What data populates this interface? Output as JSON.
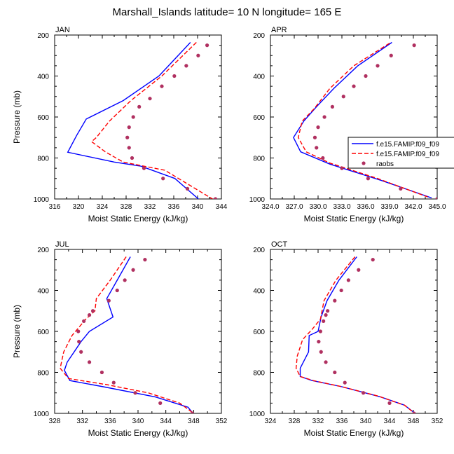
{
  "figure_title": "Marshall_Islands  latitude= 10 N longitude= 165 E",
  "legend": {
    "entries": [
      {
        "label": "f.e15.FAMIP.f09_f09",
        "style": "solid",
        "color": "#0000ff"
      },
      {
        "label": "f.e15.FAMIP.f09_f09",
        "style": "dashed",
        "color": "#ff0000"
      },
      {
        "label": "raobs",
        "style": "dots",
        "color": "#b03060"
      }
    ]
  },
  "colors": {
    "model_solid": "#0000ff",
    "model_dashed": "#ff0000",
    "raobs": "#b03060"
  },
  "chart_data": [
    {
      "type": "line",
      "panel": "JAN",
      "xlabel": "Moist Static Energy (kJ/kg)",
      "ylabel": "Pressure (mb)",
      "xlim": [
        316,
        344
      ],
      "xticks": [
        316,
        320,
        324,
        328,
        332,
        336,
        340,
        344
      ],
      "xtick_labels": [
        "316",
        "320",
        "324",
        "328",
        "332",
        "336",
        "340",
        "344"
      ],
      "ylim": [
        200,
        1000
      ],
      "yticks": [
        200,
        400,
        600,
        800,
        1000
      ],
      "ytick_labels": [
        "200",
        "400",
        "600",
        "800",
        "1000"
      ],
      "series": [
        {
          "name": "f.e15.FAMIP.f09_f09",
          "style": "solid",
          "points": [
            [
              338.8,
              236
            ],
            [
              333.5,
              400
            ],
            [
              327.5,
              520
            ],
            [
              321.3,
              610
            ],
            [
              319.7,
              690
            ],
            [
              318.2,
              772
            ],
            [
              326.0,
              820
            ],
            [
              330.5,
              840
            ],
            [
              336.2,
              900
            ],
            [
              340.3,
              1004
            ]
          ]
        },
        {
          "name": "f.e15.FAMIP.f09_f09",
          "style": "dashed",
          "points": [
            [
              339.8,
              236
            ],
            [
              334.0,
              400
            ],
            [
              328.8,
              520
            ],
            [
              325.2,
              620
            ],
            [
              323.0,
              700
            ],
            [
              322.2,
              720
            ],
            [
              324.5,
              770
            ],
            [
              327.5,
              820
            ],
            [
              334.5,
              860
            ],
            [
              342.5,
              1000
            ]
          ]
        },
        {
          "name": "raobs",
          "style": "dots",
          "points": [
            [
              341.6,
              250
            ],
            [
              340.1,
              300
            ],
            [
              338.1,
              350
            ],
            [
              336.1,
              400
            ],
            [
              334.0,
              450
            ],
            [
              332.0,
              510
            ],
            [
              330.2,
              550
            ],
            [
              329.2,
              600
            ],
            [
              328.5,
              650
            ],
            [
              328.2,
              700
            ],
            [
              328.5,
              750
            ],
            [
              329.0,
              800
            ],
            [
              331.0,
              850
            ],
            [
              334.2,
              900
            ],
            [
              338.3,
              950
            ],
            [
              343.0,
              1000
            ]
          ]
        }
      ]
    },
    {
      "type": "line",
      "panel": "APR",
      "xlabel": "Moist Static Energy (kJ/kg)",
      "ylabel": "",
      "xlim": [
        324,
        345
      ],
      "xticks": [
        324,
        327,
        330,
        333,
        336,
        339,
        342,
        345
      ],
      "xtick_labels": [
        "324.0",
        "327.0",
        "330.0",
        "333.0",
        "336.0",
        "339.0",
        "342.0",
        "345.0"
      ],
      "ylim": [
        200,
        1000
      ],
      "yticks": [
        200,
        400,
        600,
        800,
        1000
      ],
      "ytick_labels": [
        "200",
        "400",
        "600",
        "800",
        "1000"
      ],
      "series": [
        {
          "name": "f.e15.FAMIP.f09_f09",
          "style": "solid",
          "points": [
            [
              339.3,
              236
            ],
            [
              335.0,
              350
            ],
            [
              332.0,
              460
            ],
            [
              329.8,
              550
            ],
            [
              328.2,
              620
            ],
            [
              326.9,
              700
            ],
            [
              327.8,
              770
            ],
            [
              331.5,
              830
            ],
            [
              338.0,
              910
            ],
            [
              344.3,
              995
            ]
          ]
        },
        {
          "name": "f.e15.FAMIP.f09_f09",
          "style": "dashed",
          "points": [
            [
              339.0,
              240
            ],
            [
              334.5,
              350
            ],
            [
              331.5,
              460
            ],
            [
              329.5,
              560
            ],
            [
              328.0,
              620
            ],
            [
              327.5,
              700
            ],
            [
              328.5,
              770
            ],
            [
              331.5,
              825
            ],
            [
              337.5,
              900
            ],
            [
              343.8,
              990
            ]
          ]
        },
        {
          "name": "raobs",
          "style": "dots",
          "points": [
            [
              342.1,
              250
            ],
            [
              339.2,
              300
            ],
            [
              337.5,
              350
            ],
            [
              336.0,
              400
            ],
            [
              334.5,
              450
            ],
            [
              333.2,
              500
            ],
            [
              331.8,
              550
            ],
            [
              330.8,
              600
            ],
            [
              330.0,
              650
            ],
            [
              329.6,
              700
            ],
            [
              329.8,
              750
            ],
            [
              330.6,
              800
            ],
            [
              333.0,
              850
            ],
            [
              336.3,
              900
            ],
            [
              340.4,
              950
            ],
            [
              345.0,
              1000
            ]
          ]
        }
      ]
    },
    {
      "type": "line",
      "panel": "JUL",
      "xlabel": "Moist Static Energy (kJ/kg)",
      "ylabel": "Pressure (mb)",
      "xlim": [
        328,
        352
      ],
      "xticks": [
        328,
        332,
        336,
        340,
        344,
        348,
        352
      ],
      "xtick_labels": [
        "328",
        "332",
        "336",
        "340",
        "344",
        "348",
        "352"
      ],
      "ylim": [
        200,
        1000
      ],
      "yticks": [
        200,
        400,
        600,
        800,
        1000
      ],
      "ytick_labels": [
        "200",
        "400",
        "600",
        "800",
        "1000"
      ],
      "series": [
        {
          "name": "f.e15.FAMIP.f09_f09",
          "style": "solid",
          "points": [
            [
              338.9,
              236
            ],
            [
              337.0,
              350
            ],
            [
              335.5,
              440
            ],
            [
              336.4,
              530
            ],
            [
              333.0,
              600
            ],
            [
              331.8,
              650
            ],
            [
              330.8,
              700
            ],
            [
              329.8,
              750
            ],
            [
              329.4,
              790
            ],
            [
              330.2,
              840
            ],
            [
              335.0,
              870
            ],
            [
              342.5,
              920
            ],
            [
              347.2,
              970
            ],
            [
              348.0,
              1004
            ]
          ]
        },
        {
          "name": "f.e15.FAMIP.f09_f09",
          "style": "dashed",
          "points": [
            [
              338.3,
              236
            ],
            [
              336.0,
              350
            ],
            [
              334.0,
              440
            ],
            [
              333.8,
              500
            ],
            [
              332.5,
              540
            ],
            [
              330.5,
              620
            ],
            [
              329.3,
              700
            ],
            [
              328.8,
              780
            ],
            [
              330.0,
              830
            ],
            [
              335.5,
              860
            ],
            [
              341.5,
              900
            ],
            [
              346.0,
              950
            ],
            [
              347.8,
              995
            ]
          ]
        },
        {
          "name": "raobs",
          "style": "dots",
          "points": [
            [
              341.0,
              250
            ],
            [
              339.3,
              300
            ],
            [
              338.1,
              350
            ],
            [
              337.0,
              400
            ],
            [
              335.8,
              450
            ],
            [
              333.5,
              500
            ],
            [
              333.0,
              520
            ],
            [
              332.2,
              550
            ],
            [
              331.4,
              600
            ],
            [
              331.5,
              650
            ],
            [
              331.8,
              700
            ],
            [
              333.0,
              750
            ],
            [
              334.8,
              800
            ],
            [
              336.5,
              850
            ],
            [
              339.6,
              900
            ],
            [
              343.2,
              950
            ],
            [
              347.8,
              1000
            ]
          ]
        }
      ]
    },
    {
      "type": "line",
      "panel": "OCT",
      "xlabel": "Moist Static Energy (kJ/kg)",
      "ylabel": "",
      "xlim": [
        324,
        352
      ],
      "xticks": [
        324,
        328,
        332,
        336,
        340,
        344,
        348,
        352
      ],
      "xtick_labels": [
        "324",
        "328",
        "332",
        "336",
        "340",
        "344",
        "348",
        "352"
      ],
      "ylim": [
        200,
        1000
      ],
      "yticks": [
        200,
        400,
        600,
        800,
        1000
      ],
      "ytick_labels": [
        "200",
        "400",
        "600",
        "800",
        "1000"
      ],
      "series": [
        {
          "name": "f.e15.FAMIP.f09_f09",
          "style": "solid",
          "points": [
            [
              338.5,
              236
            ],
            [
              335.5,
              350
            ],
            [
              333.5,
              450
            ],
            [
              332.5,
              530
            ],
            [
              332.0,
              600
            ],
            [
              330.5,
              620
            ],
            [
              330.4,
              700
            ],
            [
              329.0,
              780
            ],
            [
              329.0,
              820
            ],
            [
              331.0,
              840
            ],
            [
              336.0,
              870
            ],
            [
              342.5,
              920
            ],
            [
              346.5,
              960
            ],
            [
              348.3,
              1000
            ]
          ]
        },
        {
          "name": "f.e15.FAMIP.f09_f09",
          "style": "dashed",
          "points": [
            [
              338.2,
              236
            ],
            [
              335.0,
              350
            ],
            [
              333.0,
              450
            ],
            [
              332.4,
              540
            ],
            [
              331.0,
              590
            ],
            [
              329.4,
              640
            ],
            [
              328.5,
              720
            ],
            [
              328.3,
              780
            ],
            [
              329.0,
              820
            ],
            [
              331.2,
              840
            ],
            [
              336.0,
              870
            ],
            [
              342.0,
              915
            ],
            [
              346.5,
              960
            ],
            [
              348.0,
              995
            ]
          ]
        },
        {
          "name": "raobs",
          "style": "dots",
          "points": [
            [
              341.2,
              250
            ],
            [
              338.8,
              300
            ],
            [
              337.1,
              350
            ],
            [
              335.9,
              400
            ],
            [
              334.8,
              450
            ],
            [
              333.6,
              500
            ],
            [
              333.3,
              520
            ],
            [
              332.9,
              550
            ],
            [
              332.4,
              600
            ],
            [
              332.1,
              650
            ],
            [
              332.5,
              700
            ],
            [
              333.3,
              750
            ],
            [
              334.8,
              800
            ],
            [
              336.5,
              850
            ],
            [
              339.6,
              900
            ],
            [
              344.0,
              950
            ],
            [
              348.1,
              1000
            ]
          ]
        }
      ]
    }
  ]
}
